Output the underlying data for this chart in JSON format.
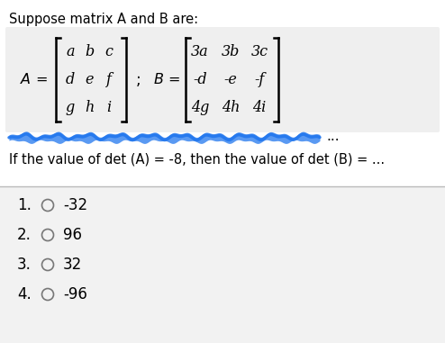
{
  "title": "Suppose matrix A and B are:",
  "bg_color": "#ffffff",
  "matrix_bg": "#efefef",
  "matrix_A_rows": [
    [
      "a",
      "b",
      "c"
    ],
    [
      "d",
      "e",
      "f"
    ],
    [
      "g",
      "h",
      "i"
    ]
  ],
  "matrix_B_rows": [
    [
      "3a",
      "3b",
      "3c"
    ],
    [
      "-d",
      "-e",
      "-f"
    ],
    [
      "4g",
      "4h",
      "4i"
    ]
  ],
  "scribble_color": "#2277ee",
  "condition_text": "If the value of det (A) = -8, then the value of det (B) = ...",
  "options": [
    {
      "num": "1.",
      "label": "-32"
    },
    {
      "num": "2.",
      "label": "96"
    },
    {
      "num": "3.",
      "label": "32"
    },
    {
      "num": "4.",
      "label": "-96"
    }
  ],
  "divider_color": "#bbbbbb",
  "options_bg": "#f2f2f2",
  "radio_color": "#777777",
  "text_color": "#000000",
  "title_fontsize": 10.5,
  "body_fontsize": 10.5,
  "matrix_fontsize": 11.5,
  "options_fontsize": 12
}
